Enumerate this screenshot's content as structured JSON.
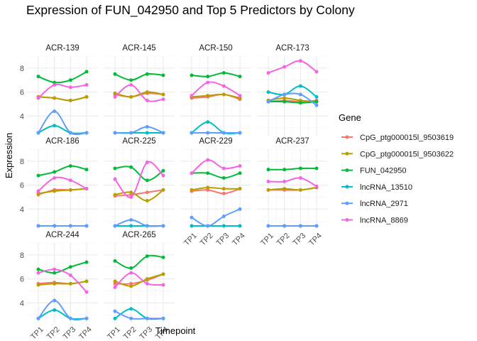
{
  "chart_data": {
    "type": "line",
    "title": "Expression of FUN_042950 and Top 5 Predictors by Colony",
    "xlabel": "Timepoint",
    "ylabel": "Expression",
    "categories": [
      "TP1",
      "TP2",
      "TP3",
      "TP4"
    ],
    "yticks": [
      4,
      6,
      8
    ],
    "ylim": [
      2.3,
      9.0
    ],
    "grid": true,
    "legend": {
      "title": "Gene",
      "position": "right"
    },
    "series_info": [
      {
        "name": "CpG_ptg000015l_9503619",
        "color": "#F8766D"
      },
      {
        "name": "CpG_ptg000015l_9503622",
        "color": "#B79F00"
      },
      {
        "name": "FUN_042950",
        "color": "#00BA38"
      },
      {
        "name": "lncRNA_13510",
        "color": "#00BFC4"
      },
      {
        "name": "lncRNA_2971",
        "color": "#619CFF"
      },
      {
        "name": "lncRNA_8869",
        "color": "#F564E3"
      }
    ],
    "panels": [
      {
        "colony": "ACR-139",
        "series": [
          [
            5.6,
            5.5,
            5.3,
            5.6
          ],
          [
            5.6,
            5.5,
            5.3,
            5.6
          ],
          [
            7.3,
            6.8,
            7.0,
            7.7
          ],
          [
            2.6,
            3.2,
            2.6,
            2.6
          ],
          [
            2.6,
            4.4,
            2.6,
            2.6
          ],
          [
            5.5,
            6.6,
            6.4,
            6.6
          ]
        ]
      },
      {
        "colony": "ACR-145",
        "series": [
          [
            5.8,
            5.6,
            5.9,
            5.8
          ],
          [
            5.9,
            5.6,
            6.0,
            5.8
          ],
          [
            7.5,
            7.0,
            7.5,
            7.4
          ],
          [
            2.6,
            2.6,
            2.6,
            2.6
          ],
          [
            2.6,
            2.6,
            3.1,
            2.6
          ],
          [
            5.6,
            6.6,
            5.3,
            5.4
          ]
        ]
      },
      {
        "colony": "ACR-150",
        "series": [
          [
            5.5,
            5.6,
            5.8,
            5.4
          ],
          [
            5.6,
            5.7,
            5.8,
            5.5
          ],
          [
            7.4,
            7.3,
            7.6,
            7.3
          ],
          [
            2.6,
            3.5,
            2.6,
            2.6
          ],
          [
            2.6,
            2.6,
            2.6,
            2.6
          ],
          [
            5.7,
            6.8,
            6.5,
            5.7
          ]
        ]
      },
      {
        "colony": "ACR-173",
        "series": [
          [
            5.2,
            5.3,
            5.2,
            5.3
          ],
          [
            5.3,
            5.5,
            5.3,
            5.2
          ],
          [
            5.2,
            5.2,
            5.1,
            5.2
          ],
          [
            6.0,
            5.8,
            6.5,
            5.6
          ],
          [
            5.2,
            5.8,
            5.8,
            4.9
          ],
          [
            7.6,
            8.1,
            8.6,
            7.7
          ]
        ]
      },
      {
        "colony": "ACR-186",
        "series": [
          [
            5.2,
            5.6,
            5.6,
            5.7
          ],
          [
            5.3,
            5.5,
            5.6,
            5.7
          ],
          [
            6.8,
            7.1,
            7.6,
            7.3
          ],
          [
            2.6,
            2.6,
            2.6,
            2.6
          ],
          [
            2.6,
            2.6,
            2.6,
            2.6
          ],
          [
            5.5,
            6.6,
            6.4,
            5.7
          ]
        ]
      },
      {
        "colony": "ACR-225",
        "series": [
          [
            5.1,
            5.2,
            5.4,
            5.6
          ],
          [
            5.2,
            5.4,
            4.7,
            5.6
          ],
          [
            7.4,
            7.5,
            6.4,
            7.2
          ],
          [
            2.6,
            2.6,
            2.6,
            2.6
          ],
          [
            2.6,
            3.1,
            2.6,
            2.6
          ],
          [
            6.5,
            5.0,
            7.9,
            6.8
          ]
        ]
      },
      {
        "colony": "ACR-229",
        "series": [
          [
            5.5,
            5.6,
            5.3,
            5.7
          ],
          [
            5.6,
            5.8,
            5.7,
            5.7
          ],
          [
            7.0,
            7.0,
            6.6,
            7.0
          ],
          [
            2.6,
            2.6,
            2.6,
            2.6
          ],
          [
            3.3,
            2.6,
            3.4,
            4.0
          ],
          [
            7.0,
            8.1,
            7.4,
            7.6
          ]
        ]
      },
      {
        "colony": "ACR-237",
        "series": [
          [
            5.6,
            5.6,
            5.6,
            5.8
          ],
          [
            5.6,
            5.7,
            5.6,
            5.8
          ],
          [
            7.3,
            7.3,
            7.4,
            7.4
          ],
          [
            2.6,
            2.6,
            2.6,
            2.6
          ],
          [
            2.6,
            2.6,
            2.6,
            2.6
          ],
          [
            6.3,
            6.3,
            6.6,
            5.9
          ]
        ]
      },
      {
        "colony": "ACR-244",
        "series": [
          [
            5.6,
            5.7,
            5.6,
            5.8
          ],
          [
            5.5,
            5.6,
            5.6,
            5.8
          ],
          [
            6.8,
            6.5,
            7.0,
            7.4
          ],
          [
            2.7,
            3.4,
            2.7,
            2.7
          ],
          [
            2.7,
            4.2,
            2.7,
            2.7
          ],
          [
            6.5,
            6.8,
            6.3,
            4.9
          ]
        ]
      },
      {
        "colony": "ACR-265",
        "series": [
          [
            5.6,
            5.6,
            5.9,
            6.4
          ],
          [
            5.8,
            5.4,
            6.0,
            6.4
          ],
          [
            7.5,
            6.9,
            7.9,
            7.8
          ],
          [
            2.7,
            3.5,
            2.7,
            2.7
          ],
          [
            3.3,
            2.7,
            2.7,
            2.7
          ],
          [
            5.3,
            6.5,
            5.6,
            5.5
          ]
        ]
      }
    ]
  }
}
